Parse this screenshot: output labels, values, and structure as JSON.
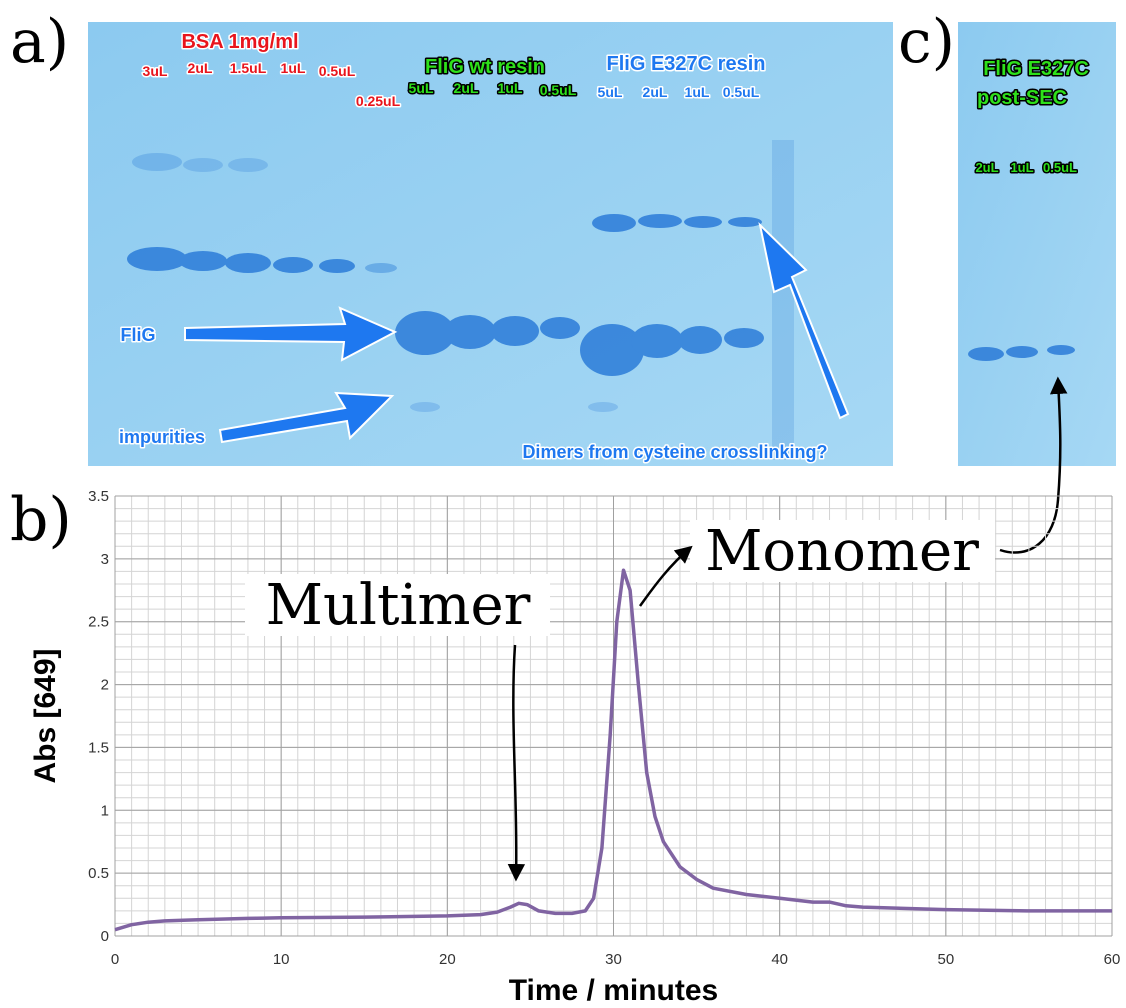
{
  "panels": {
    "a": "a)",
    "b": "b)",
    "c": "c)"
  },
  "gel_a": {
    "bsa_title": "BSA 1mg/ml",
    "bsa_lanes": [
      "3uL",
      "2uL",
      "1.5uL",
      "1uL",
      "0.5uL",
      "0.25uL"
    ],
    "wt_title": "FliG wt resin",
    "wt_lanes": [
      "5uL",
      "2uL",
      "1uL",
      "0.5uL"
    ],
    "e327c_title": "FliG E327C resin",
    "e327c_lanes": [
      "5uL",
      "2uL",
      "1uL",
      "0.5uL"
    ],
    "flig_label": "FliG",
    "impurities_label": "impurities",
    "dimers_label": "Dimers from cysteine crosslinking?"
  },
  "gel_c": {
    "title_lines": [
      "FliG E327C",
      "post-SEC"
    ],
    "lanes": [
      "2uL",
      "1uL",
      "0.5uL"
    ]
  },
  "chart_data": {
    "type": "line",
    "xlabel": "Time / minutes",
    "ylabel": "Abs [649]",
    "x": [
      0,
      1,
      2,
      3,
      5,
      8,
      10,
      15,
      20,
      22,
      23,
      23.8,
      24.3,
      24.8,
      25.5,
      26.5,
      27.5,
      28.3,
      28.8,
      29.3,
      29.8,
      30.2,
      30.6,
      31,
      31.5,
      32,
      32.5,
      33,
      34,
      35,
      36,
      38,
      40,
      42,
      43,
      44,
      45,
      50,
      55,
      60
    ],
    "values": [
      0.05,
      0.09,
      0.11,
      0.12,
      0.13,
      0.14,
      0.145,
      0.15,
      0.16,
      0.17,
      0.19,
      0.23,
      0.26,
      0.25,
      0.2,
      0.18,
      0.18,
      0.2,
      0.3,
      0.7,
      1.6,
      2.5,
      2.91,
      2.75,
      2.0,
      1.3,
      0.95,
      0.75,
      0.55,
      0.45,
      0.38,
      0.33,
      0.3,
      0.27,
      0.27,
      0.24,
      0.23,
      0.21,
      0.2,
      0.2
    ],
    "color": "#8064a2",
    "xlim": [
      0,
      60
    ],
    "xticks": [
      0,
      10,
      20,
      30,
      40,
      50,
      60
    ],
    "ylim": [
      0,
      3.5
    ],
    "yticks": [
      0,
      0.5,
      1,
      1.5,
      2,
      2.5,
      3,
      3.5
    ],
    "grid": true,
    "minor_grid": {
      "x": 1,
      "y": 0.1
    },
    "annotations": [
      "Multimer",
      "Monomer"
    ]
  }
}
